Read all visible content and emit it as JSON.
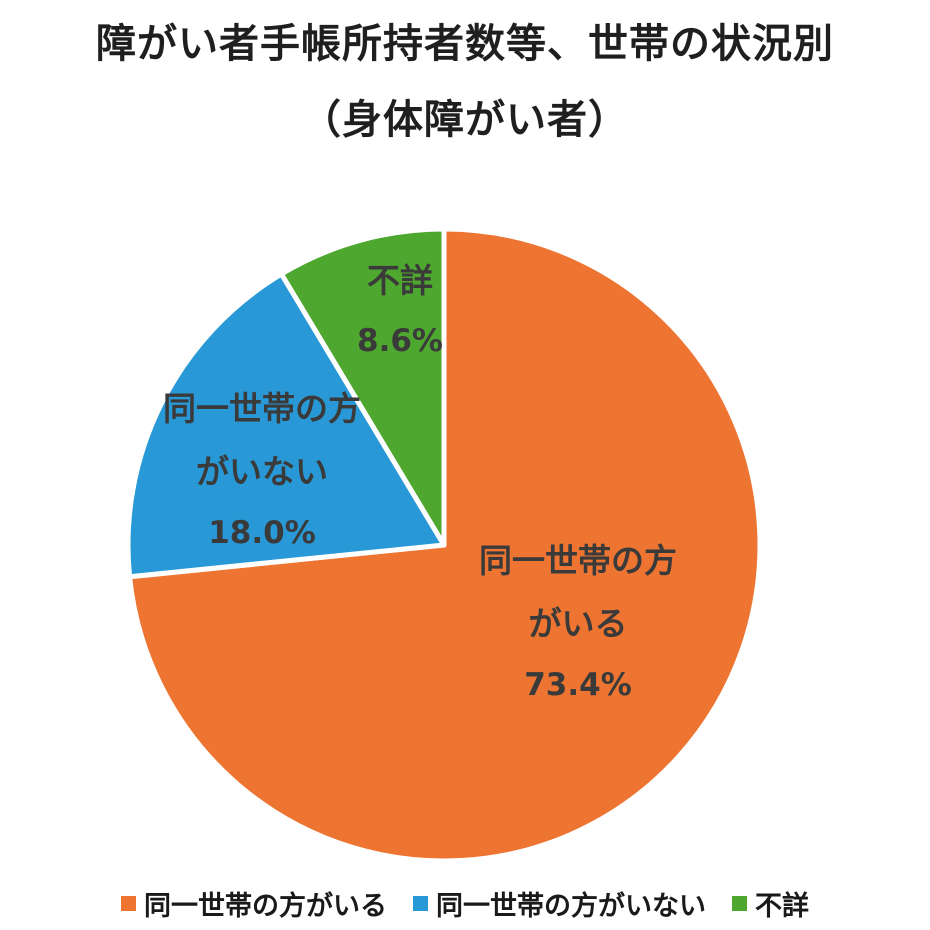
{
  "title": {
    "line1": "障がい者手帳所持者数等、世帯の状況別",
    "line2": "（身体障がい者）"
  },
  "chart_data": {
    "type": "pie",
    "title": "障がい者手帳所持者数等、世帯の状況別（身体障がい者）",
    "labels": [
      "同一世帯の方がいる",
      "同一世帯の方がいない",
      "不詳"
    ],
    "values": [
      73.4,
      18.0,
      8.6
    ],
    "colors": [
      "#ED7531",
      "#2899D6",
      "#4EA72E"
    ],
    "start_angle_deg": 0,
    "direction": "clockwise",
    "legend_position": "bottom",
    "slice_labels": [
      {
        "lines": [
          "同一世帯の方",
          "がいる"
        ],
        "pct": "73.4%"
      },
      {
        "lines": [
          "同一世帯の方",
          "がいない"
        ],
        "pct": "18.0%"
      },
      {
        "lines": [
          "不詳"
        ],
        "pct": "8.6%"
      }
    ],
    "legend": [
      "同一世帯の方がいる",
      "同一世帯の方がいない",
      "不詳"
    ]
  }
}
